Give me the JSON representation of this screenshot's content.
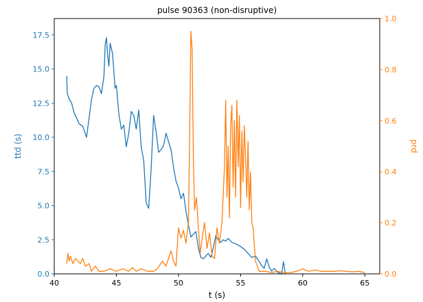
{
  "chart_data": {
    "type": "line",
    "title": "pulse 90363 (non-disruptive)",
    "xlabel": "t (s)",
    "ylabel_left": "ttd (s)",
    "ylabel_right": "prd",
    "xlim": [
      40.0,
      66.2
    ],
    "ylim_left": [
      0.0,
      18.7
    ],
    "ylim_right": [
      0.0,
      1.0
    ],
    "x_ticks": [
      40,
      45,
      50,
      55,
      60,
      65
    ],
    "x_tick_labels": [
      "40",
      "45",
      "50",
      "55",
      "60",
      "65"
    ],
    "y_left_ticks": [
      0.0,
      2.5,
      5.0,
      7.5,
      10.0,
      12.5,
      15.0,
      17.5
    ],
    "y_left_tick_labels": [
      "0.0",
      "2.5",
      "5.0",
      "7.5",
      "10.0",
      "12.5",
      "15.0",
      "17.5"
    ],
    "y_right_ticks": [
      0.0,
      0.2,
      0.4,
      0.6,
      0.8,
      1.0
    ],
    "y_right_tick_labels": [
      "0.0",
      "0.2",
      "0.4",
      "0.6",
      "0.8",
      "1.0"
    ],
    "colors": {
      "ttd": "#1f77b4",
      "prd": "#ff7f0e",
      "axes": "#000000"
    },
    "grid": false,
    "series": [
      {
        "axis": "left",
        "x": [
          41.0,
          41.05,
          41.2,
          41.4,
          41.6,
          41.8,
          42.0,
          42.3,
          42.6,
          43.0,
          43.2,
          43.4,
          43.6,
          43.8,
          44.0,
          44.1,
          44.2,
          44.3,
          44.4,
          44.5,
          44.7,
          44.9,
          45.0,
          45.2,
          45.4,
          45.6,
          45.8,
          46.0,
          46.2,
          46.4,
          46.6,
          46.8,
          47.0,
          47.2,
          47.4,
          47.6,
          47.8,
          48.0,
          48.2,
          48.4,
          48.6,
          48.8,
          49.0,
          49.2,
          49.4,
          49.6,
          49.8,
          50.0,
          50.2,
          50.4,
          50.6,
          50.8,
          51.0,
          51.2,
          51.4,
          51.6,
          51.8,
          52.0,
          52.2,
          52.4,
          52.6,
          52.8,
          53.0,
          53.2,
          53.4,
          53.6,
          53.8,
          54.0,
          54.3,
          54.6,
          55.0,
          55.3,
          55.6,
          55.9,
          56.2,
          56.5,
          56.7,
          56.9,
          57.1,
          57.3,
          57.5,
          57.7,
          58.0,
          58.3,
          58.45,
          58.6
        ],
        "values": [
          14.5,
          13.2,
          12.8,
          12.5,
          11.8,
          11.4,
          11.0,
          10.8,
          10.0,
          12.8,
          13.6,
          13.8,
          13.7,
          13.2,
          14.5,
          16.8,
          17.3,
          16.0,
          15.2,
          16.9,
          16.1,
          13.6,
          13.8,
          11.7,
          10.6,
          10.9,
          9.3,
          10.3,
          11.9,
          11.6,
          10.6,
          12.0,
          9.3,
          8.3,
          5.2,
          4.8,
          7.7,
          11.6,
          10.4,
          8.9,
          9.1,
          9.4,
          10.3,
          9.7,
          9.1,
          7.8,
          6.8,
          6.3,
          5.5,
          5.9,
          4.6,
          3.6,
          2.7,
          2.9,
          3.1,
          1.9,
          1.2,
          1.1,
          1.3,
          1.5,
          1.2,
          1.9,
          2.8,
          2.5,
          2.3,
          2.5,
          2.4,
          2.6,
          2.3,
          2.2,
          2.0,
          1.8,
          1.5,
          1.2,
          1.3,
          0.9,
          0.6,
          0.4,
          1.1,
          0.5,
          0.2,
          0.4,
          0.1,
          0.0,
          0.9,
          0.0
        ]
      },
      {
        "axis": "right",
        "x": [
          41.0,
          41.1,
          41.2,
          41.3,
          41.5,
          41.7,
          41.9,
          42.1,
          42.3,
          42.5,
          42.8,
          43.0,
          43.3,
          43.6,
          44.0,
          44.5,
          45.0,
          45.5,
          46.0,
          46.3,
          46.6,
          47.0,
          47.5,
          48.0,
          48.3,
          48.7,
          49.0,
          49.2,
          49.4,
          49.6,
          49.8,
          50.0,
          50.2,
          50.4,
          50.6,
          50.8,
          50.9,
          51.0,
          51.1,
          51.2,
          51.3,
          51.45,
          51.6,
          51.75,
          51.9,
          52.1,
          52.3,
          52.5,
          52.7,
          52.9,
          53.1,
          53.3,
          53.5,
          53.7,
          53.8,
          53.9,
          54.0,
          54.1,
          54.2,
          54.3,
          54.4,
          54.5,
          54.6,
          54.7,
          54.8,
          54.9,
          55.0,
          55.1,
          55.2,
          55.3,
          55.4,
          55.5,
          55.6,
          55.7,
          55.8,
          55.9,
          56.0,
          56.2,
          56.5,
          57.0,
          57.5,
          58.0,
          58.5,
          59.0,
          59.5,
          60.0,
          60.5,
          61.0,
          61.5,
          62.0,
          62.5,
          63.0,
          63.5,
          64.0,
          64.5,
          65.0
        ],
        "values": [
          0.04,
          0.08,
          0.05,
          0.07,
          0.04,
          0.06,
          0.05,
          0.04,
          0.06,
          0.03,
          0.04,
          0.01,
          0.03,
          0.01,
          0.01,
          0.02,
          0.01,
          0.02,
          0.01,
          0.025,
          0.01,
          0.02,
          0.01,
          0.01,
          0.02,
          0.05,
          0.03,
          0.06,
          0.09,
          0.05,
          0.03,
          0.18,
          0.14,
          0.17,
          0.12,
          0.2,
          0.55,
          0.95,
          0.88,
          0.45,
          0.25,
          0.3,
          0.18,
          0.08,
          0.14,
          0.2,
          0.1,
          0.16,
          0.07,
          0.06,
          0.18,
          0.12,
          0.2,
          0.42,
          0.68,
          0.3,
          0.5,
          0.22,
          0.58,
          0.66,
          0.34,
          0.6,
          0.3,
          0.68,
          0.42,
          0.62,
          0.26,
          0.56,
          0.36,
          0.58,
          0.45,
          0.3,
          0.52,
          0.25,
          0.4,
          0.2,
          0.18,
          0.05,
          0.01,
          0.01,
          0.005,
          0.01,
          0.005,
          0.005,
          0.01,
          0.02,
          0.01,
          0.015,
          0.01,
          0.01,
          0.01,
          0.012,
          0.01,
          0.008,
          0.01,
          0.005
        ]
      }
    ]
  }
}
